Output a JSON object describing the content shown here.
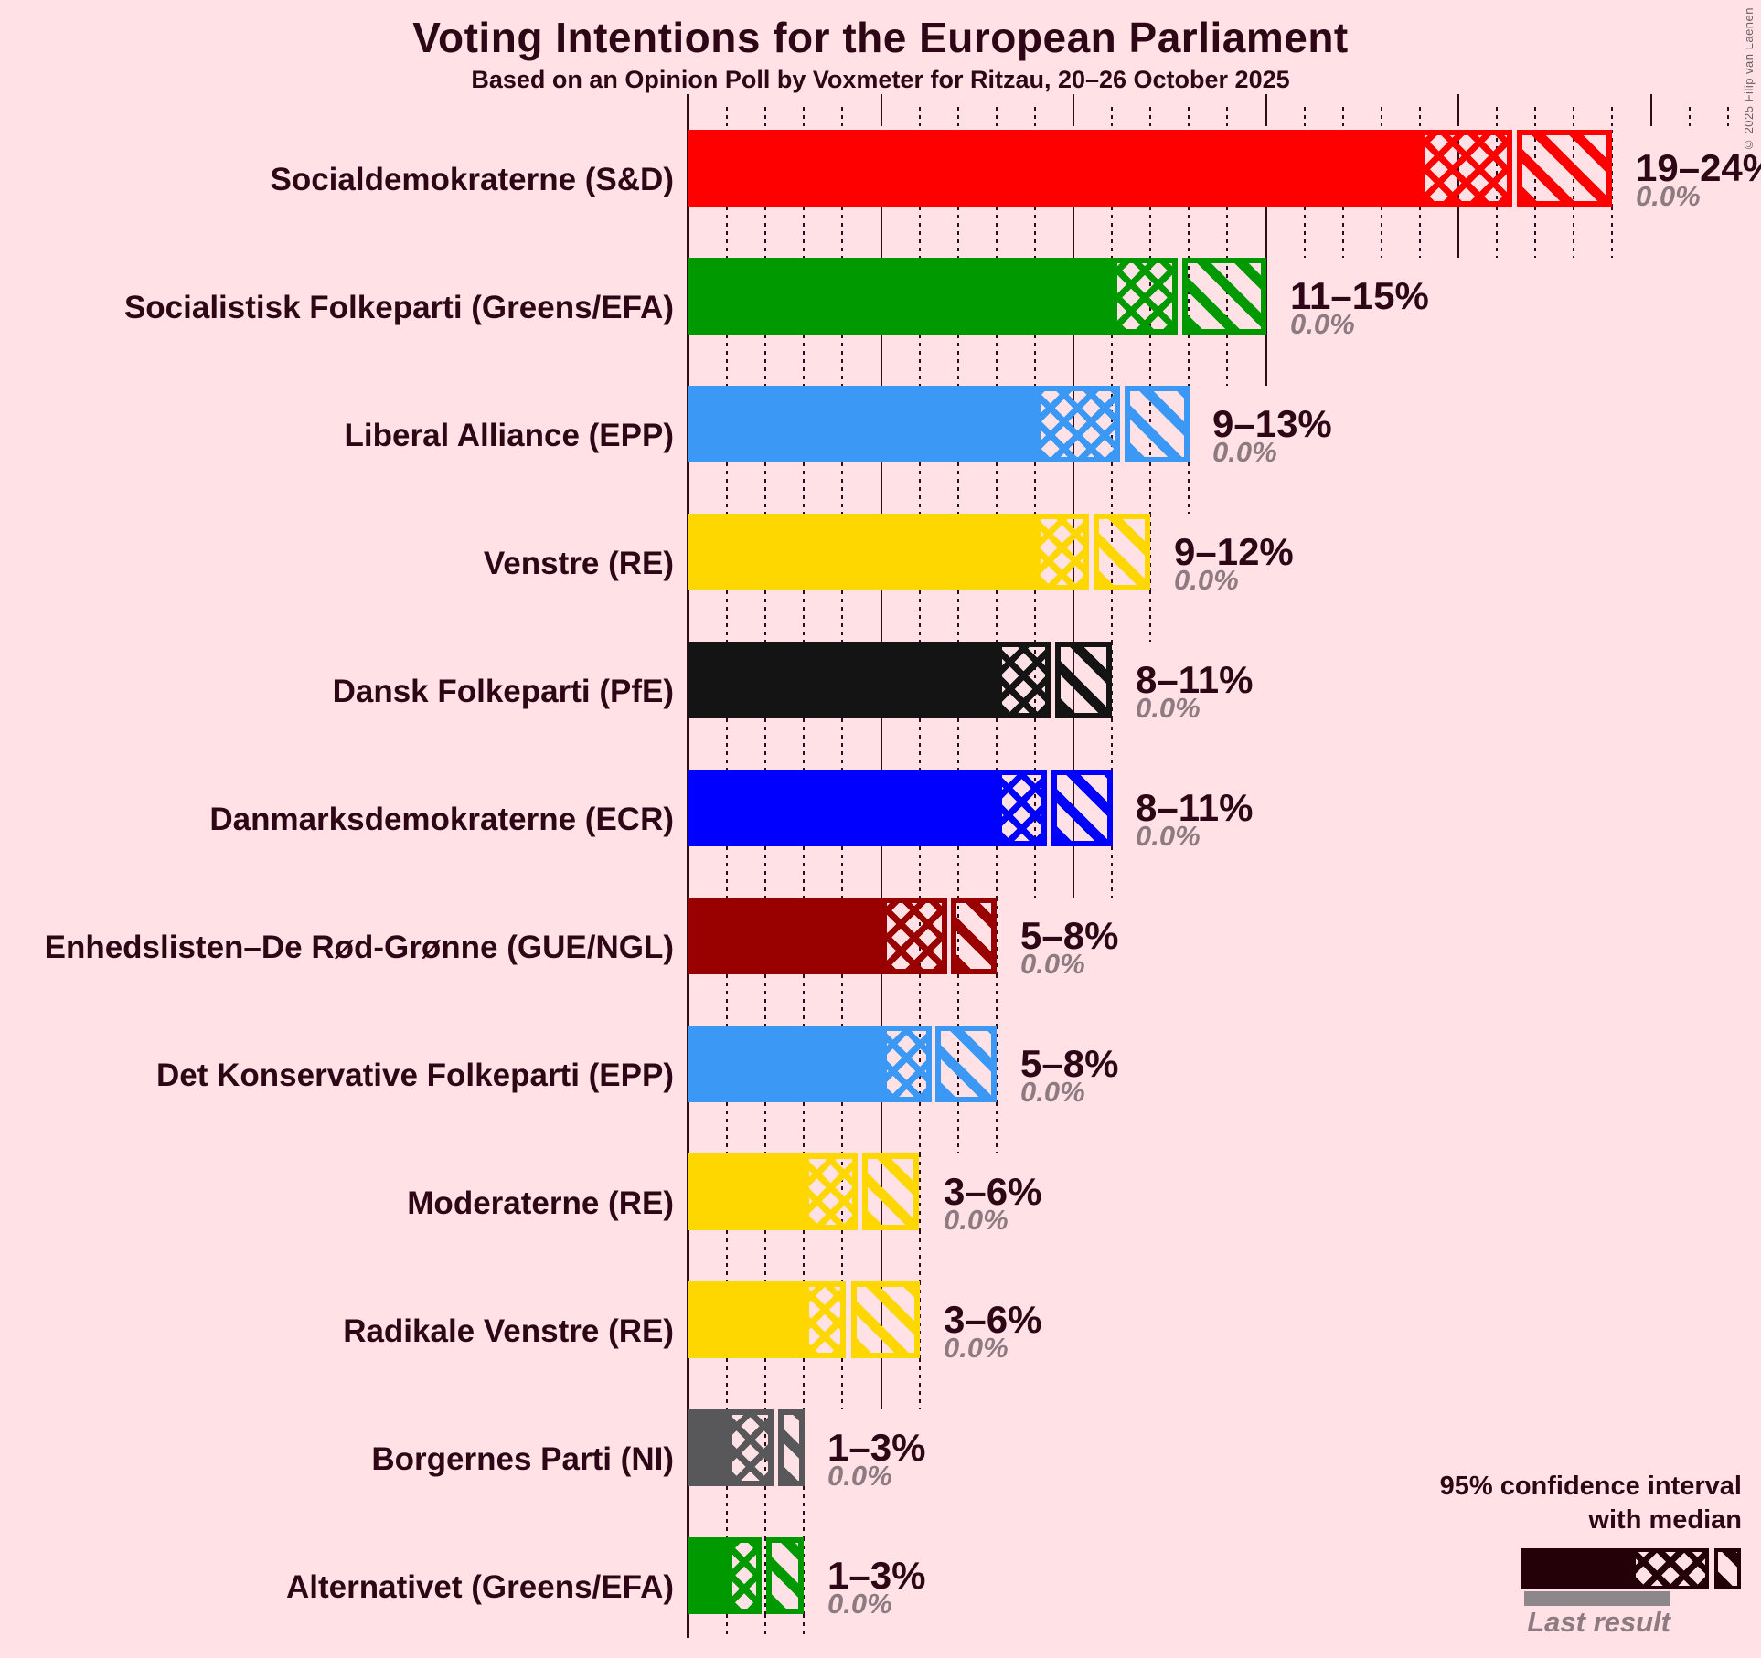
{
  "chart_data": {
    "type": "bar",
    "orientation": "horizontal",
    "title": "Voting Intentions for the European Parliament",
    "subtitle": "Based on an Opinion Poll by Voxmeter for Ritzau, 20–26 October 2025",
    "unit": "%",
    "ci_level": "95%",
    "x_axis": {
      "min": 0,
      "max": 27,
      "minor_tick_step": 1,
      "major_tick_step": 5,
      "gridlines": "dotted every 1%, solid every 5%"
    },
    "legend_position": "bottom-right",
    "parties": [
      {
        "name": "Socialdemokraterne (S&D)",
        "color": "#FF0000",
        "ci_low": 19,
        "median": 21.4,
        "ci_high": 24,
        "label": "19–24%",
        "last_result": "0.0%"
      },
      {
        "name": "Socialistisk Folkeparti (Greens/EFA)",
        "color": "#009900",
        "ci_low": 11,
        "median": 12.7,
        "ci_high": 15,
        "label": "11–15%",
        "last_result": "0.0%"
      },
      {
        "name": "Liberal Alliance (EPP)",
        "color": "#3B99F5",
        "ci_low": 9,
        "median": 11.2,
        "ci_high": 13,
        "label": "9–13%",
        "last_result": "0.0%"
      },
      {
        "name": "Venstre (RE)",
        "color": "#FFD700",
        "ci_low": 9,
        "median": 10.4,
        "ci_high": 12,
        "label": "9–12%",
        "last_result": "0.0%"
      },
      {
        "name": "Dansk Folkeparti (PfE)",
        "color": "#141414",
        "ci_low": 8,
        "median": 9.4,
        "ci_high": 11,
        "label": "8–11%",
        "last_result": "0.0%"
      },
      {
        "name": "Danmarksdemokraterne (ECR)",
        "color": "#0000FF",
        "ci_low": 8,
        "median": 9.3,
        "ci_high": 11,
        "label": "8–11%",
        "last_result": "0.0%"
      },
      {
        "name": "Enhedslisten–De Rød-Grønne (GUE/NGL)",
        "color": "#990000",
        "ci_low": 5,
        "median": 6.7,
        "ci_high": 8,
        "label": "5–8%",
        "last_result": "0.0%"
      },
      {
        "name": "Det Konservative Folkeparti (EPP)",
        "color": "#3B99F5",
        "ci_low": 5,
        "median": 6.3,
        "ci_high": 8,
        "label": "5–8%",
        "last_result": "0.0%"
      },
      {
        "name": "Moderaterne (RE)",
        "color": "#FFD700",
        "ci_low": 3,
        "median": 4.4,
        "ci_high": 6,
        "label": "3–6%",
        "last_result": "0.0%"
      },
      {
        "name": "Radikale Venstre (RE)",
        "color": "#FFD700",
        "ci_low": 3,
        "median": 4.1,
        "ci_high": 6,
        "label": "3–6%",
        "last_result": "0.0%"
      },
      {
        "name": "Borgernes Parti (NI)",
        "color": "#58585B",
        "ci_low": 1,
        "median": 2.2,
        "ci_high": 3,
        "label": "1–3%",
        "last_result": "0.0%"
      },
      {
        "name": "Alternativet (Greens/EFA)",
        "color": "#009900",
        "ci_low": 1,
        "median": 1.9,
        "ci_high": 3,
        "label": "1–3%",
        "last_result": "0.0%"
      }
    ]
  },
  "legend": {
    "line1": "95% confidence interval",
    "line2": "with median",
    "last_result_label": "Last result"
  },
  "copyright": "© 2025 Filip van Laenen",
  "colors": {
    "background": "#FFE1E6",
    "text": "#2E0716",
    "muted": "#8E7B82",
    "grid": "#2B0E18",
    "legend_sample": "#240008",
    "last_result_bar": "#8D868A"
  }
}
